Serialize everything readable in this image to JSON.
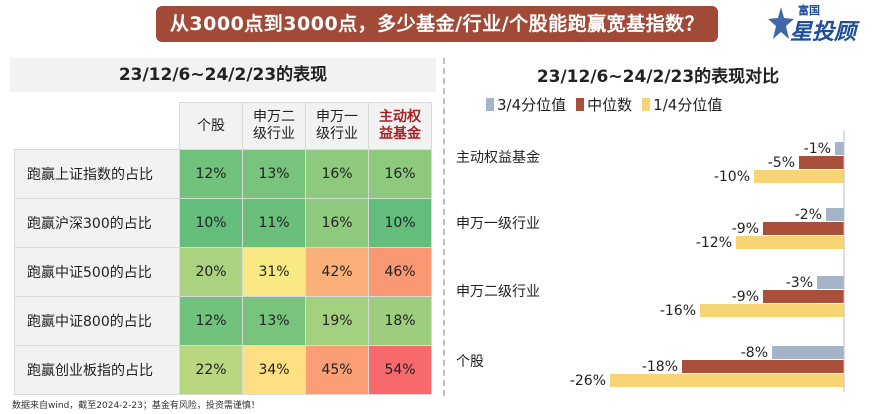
{
  "header": {
    "banner_title": "从3000点到3000点，多少基金/行业/个股能跑赢宽基指数？",
    "logo_small": "富国",
    "logo_big": "星投顾"
  },
  "table": {
    "title": "23/12/6~24/2/23的表现",
    "columns": [
      "个股",
      "申万二\n级行业",
      "申万一\n级行业",
      "主动权\n益基金"
    ],
    "rows": [
      {
        "label": "跑赢上证指数的占比",
        "values": [
          "12%",
          "13%",
          "16%",
          "16%"
        ]
      },
      {
        "label": "跑赢沪深300的占比",
        "values": [
          "10%",
          "11%",
          "16%",
          "10%"
        ]
      },
      {
        "label": "跑赢中证500的占比",
        "values": [
          "20%",
          "31%",
          "42%",
          "46%"
        ]
      },
      {
        "label": "跑赢中证800的占比",
        "values": [
          "12%",
          "13%",
          "19%",
          "18%"
        ]
      },
      {
        "label": "跑赢创业板指的占比",
        "values": [
          "22%",
          "34%",
          "45%",
          "54%"
        ]
      }
    ]
  },
  "note": "数据来自wind，截至2024-2-23；基金有风险，投资需谨慎！",
  "chart_data": {
    "type": "bar",
    "orientation": "horizontal",
    "title": "23/12/6~24/2/23的表现对比",
    "categories": [
      "主动权益基金",
      "申万一级行业",
      "申万二级行业",
      "个股"
    ],
    "series": [
      {
        "name": "3/4分位值",
        "color": "#a5b4c8",
        "values": [
          -1,
          -2,
          -3,
          -8
        ]
      },
      {
        "name": "中位数",
        "color": "#a9503b",
        "values": [
          -5,
          -9,
          -9,
          -18
        ]
      },
      {
        "name": "1/4分位值",
        "color": "#f7d474",
        "values": [
          -10,
          -12,
          -16,
          -26
        ]
      }
    ],
    "value_labels": [
      [
        "-1%",
        "-2%",
        "-3%",
        "-8%"
      ],
      [
        "-5%",
        "-9%",
        "-9%",
        "-18%"
      ],
      [
        "-10%",
        "-12%",
        "-16%",
        "-26%"
      ]
    ],
    "legend_position": "top",
    "xlim": [
      -26,
      0
    ]
  }
}
